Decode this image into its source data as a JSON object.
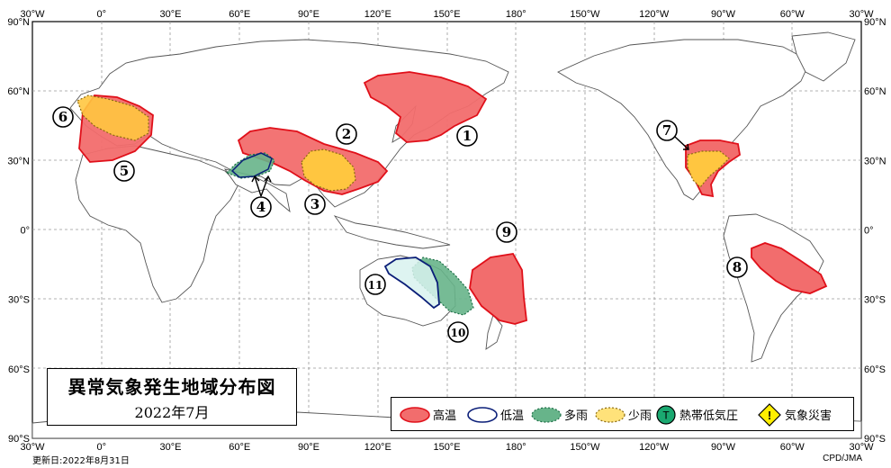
{
  "title": {
    "main": "異常気象発生地域分布図",
    "sub": "2022年7月"
  },
  "footer": {
    "updated": "更新日:2022年8月31日",
    "credit": "CPD/JMA"
  },
  "axes": {
    "top_lon_labels": [
      "30°W",
      "0°",
      "30°E",
      "60°E",
      "90°E",
      "120°E",
      "150°E",
      "180°",
      "150°W",
      "120°W",
      "90°W",
      "60°W",
      "30°W"
    ],
    "bottom_lon_labels": [
      "30°W",
      "0°",
      "30°E",
      "60°E",
      "90°E",
      "120°E",
      "150°E",
      "180°",
      "150°W",
      "120°W",
      "90°W",
      "60°W",
      "30°W"
    ],
    "left_lat_labels": [
      "90°N",
      "60°N",
      "30°N",
      "0°",
      "30°S",
      "60°S",
      "90°S"
    ],
    "right_lat_labels": [
      "90°N",
      "60°N",
      "30°N",
      "0°",
      "30°S",
      "60°S",
      "90°S"
    ]
  },
  "legend": {
    "items": [
      {
        "label": "高温",
        "type": "high-temp",
        "color": "#f26d6d"
      },
      {
        "label": "低温",
        "type": "low-temp",
        "color": "#0a1e78"
      },
      {
        "label": "多雨",
        "type": "heavy-rain",
        "color": "#3a9a6a"
      },
      {
        "label": "少雨",
        "type": "light-rain",
        "color": "#ffd040"
      },
      {
        "label": "熱帯低気圧",
        "type": "tropical-cyclone",
        "symbol": "T",
        "color": "#1aa870"
      },
      {
        "label": "気象災害",
        "type": "weather-disaster",
        "symbol": "!",
        "color": "#ffee00"
      }
    ]
  },
  "events": [
    {
      "number": "1",
      "type": "high-temp",
      "region": "east-asia"
    },
    {
      "number": "2",
      "type": "high-temp",
      "region": "central-asia-china"
    },
    {
      "number": "3",
      "type": "light-rain",
      "region": "china"
    },
    {
      "number": "4",
      "type": "heavy-rain",
      "region": "pakistan-afghanistan"
    },
    {
      "number": "5",
      "type": "high-temp",
      "region": "europe-north-africa"
    },
    {
      "number": "6",
      "type": "light-rain",
      "region": "western-europe"
    },
    {
      "number": "7",
      "type": "high-temp-light-rain",
      "region": "southern-usa-mexico"
    },
    {
      "number": "8",
      "type": "high-temp",
      "region": "south-america"
    },
    {
      "number": "9",
      "type": "high-temp",
      "region": "southwest-pacific"
    },
    {
      "number": "10",
      "type": "heavy-rain",
      "region": "eastern-australia"
    },
    {
      "number": "11",
      "type": "low-temp",
      "region": "central-australia"
    }
  ],
  "colors": {
    "high_fill": "#f26d6d",
    "high_stroke": "#e0101a",
    "low_fill": "#d8f2ef",
    "low_stroke": "#0a1e78",
    "rain_fill": "#67b48a",
    "rain_stroke": "#1d6f47",
    "dry_fill": "#ffc640",
    "dry_stroke": "#8a6a10",
    "land_stroke": "#555555",
    "grid": "#888888"
  }
}
